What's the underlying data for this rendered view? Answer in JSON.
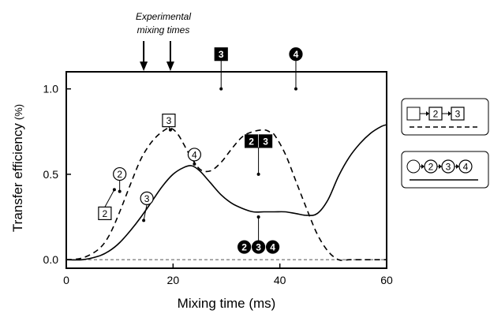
{
  "chart_data": {
    "type": "line",
    "xlabel": "Mixing time (ms)",
    "ylabel_main": "Transfer efficiency",
    "ylabel_unit": "(%)",
    "xlim": [
      0,
      60
    ],
    "ylim": [
      -0.05,
      1.1
    ],
    "x_ticks": [
      0,
      20,
      40,
      60
    ],
    "x_tick_labels": [
      "0",
      "20",
      "40",
      "60"
    ],
    "y_ticks": [
      0.0,
      0.5,
      1.0
    ],
    "y_tick_labels": [
      "0.0",
      "0.5",
      "1.0"
    ],
    "grid": false,
    "baseline": 0.0,
    "series": [
      {
        "key": "dashed",
        "style": "dashed",
        "x": [
          0,
          3,
          6,
          8,
          10,
          12,
          14,
          16,
          18,
          19.5,
          21,
          23,
          25,
          27,
          29,
          31,
          33,
          35,
          37,
          38,
          39,
          41,
          43,
          45,
          47,
          49,
          51,
          53,
          55,
          57,
          59,
          60
        ],
        "y": [
          0.0,
          0.01,
          0.06,
          0.14,
          0.28,
          0.44,
          0.59,
          0.69,
          0.75,
          0.77,
          0.73,
          0.62,
          0.53,
          0.52,
          0.57,
          0.65,
          0.72,
          0.75,
          0.76,
          0.75,
          0.73,
          0.62,
          0.46,
          0.3,
          0.15,
          0.05,
          0.0,
          0.0,
          0.0,
          0.0,
          0.0,
          0.0
        ]
      },
      {
        "key": "solid",
        "style": "solid",
        "x": [
          0,
          3,
          6,
          8,
          10,
          12,
          14,
          16,
          18,
          20,
          22,
          23.5,
          25,
          27,
          29,
          31,
          33,
          35,
          37,
          39,
          41,
          43,
          45,
          47,
          49,
          51,
          53,
          55,
          57,
          59,
          60
        ],
        "y": [
          0.0,
          0.0,
          0.02,
          0.05,
          0.1,
          0.17,
          0.25,
          0.34,
          0.43,
          0.5,
          0.54,
          0.55,
          0.52,
          0.45,
          0.38,
          0.33,
          0.3,
          0.28,
          0.28,
          0.28,
          0.28,
          0.27,
          0.26,
          0.27,
          0.35,
          0.49,
          0.6,
          0.68,
          0.74,
          0.78,
          0.79
        ]
      }
    ],
    "arrows": {
      "label_line1": "Experimental",
      "label_line2": "mixing times",
      "x": [
        14.5,
        19.5
      ]
    },
    "markers": [
      {
        "glyphs": [
          {
            "t": "3",
            "shape": "square-filled"
          }
        ],
        "x": 29,
        "y": 1.0
      },
      {
        "glyphs": [
          {
            "t": "4",
            "shape": "circle-filled"
          }
        ],
        "x": 43,
        "y": 1.0
      },
      {
        "glyphs": [
          {
            "t": "2",
            "shape": "square-filled"
          },
          {
            "t": "3",
            "shape": "square-filled"
          }
        ],
        "x": 36,
        "y": 0.5
      },
      {
        "glyphs": [
          {
            "t": "2",
            "shape": "circle-filled"
          },
          {
            "t": "3",
            "shape": "circle-filled"
          },
          {
            "t": "4",
            "shape": "circle-filled"
          }
        ],
        "x": 36,
        "y": 0.25
      },
      {
        "glyphs": [
          {
            "t": "3",
            "shape": "square-open"
          }
        ],
        "x": 19.5,
        "y": 0.76
      },
      {
        "glyphs": [
          {
            "t": "4",
            "shape": "circle-open"
          }
        ],
        "x": 24,
        "y": 0.56
      },
      {
        "glyphs": [
          {
            "t": "2",
            "shape": "circle-open"
          }
        ],
        "x": 10,
        "y": 0.4
      },
      {
        "glyphs": [
          {
            "t": "2",
            "shape": "square-open"
          }
        ],
        "x": 9,
        "y": 0.41
      },
      {
        "glyphs": [
          {
            "t": "3",
            "shape": "circle-open"
          }
        ],
        "x": 14.5,
        "y": 0.23
      }
    ],
    "legend": [
      {
        "series": "dashed",
        "start_shape": "square",
        "steps": [
          "2",
          "3"
        ],
        "step_shape": "square"
      },
      {
        "series": "solid",
        "start_shape": "circle",
        "steps": [
          "2",
          "3",
          "4"
        ],
        "step_shape": "circle"
      }
    ]
  }
}
